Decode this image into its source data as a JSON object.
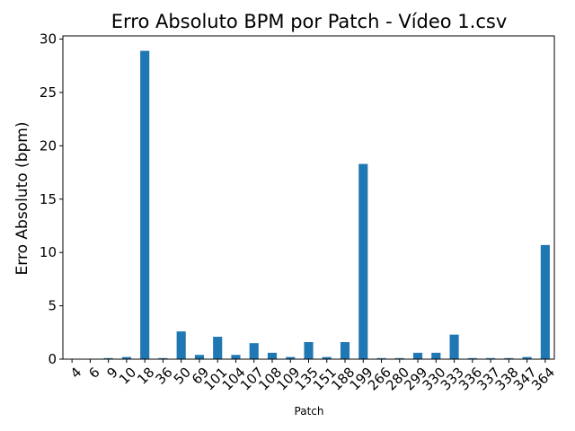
{
  "chart_data": {
    "type": "bar",
    "title": "Erro Absoluto BPM por Patch - Vídeo 1.csv",
    "xlabel": "Patch",
    "ylabel": "Erro Absoluto (bpm)",
    "ylim": [
      0,
      30.3
    ],
    "yticks": [
      0,
      5,
      10,
      15,
      20,
      25,
      30
    ],
    "grid": false,
    "legend": "none",
    "bar_color": "#1f77b4",
    "categories": [
      "4",
      "6",
      "9",
      "10",
      "18",
      "36",
      "50",
      "69",
      "101",
      "104",
      "107",
      "108",
      "109",
      "135",
      "151",
      "188",
      "199",
      "266",
      "280",
      "299",
      "330",
      "333",
      "336",
      "337",
      "338",
      "347",
      "364"
    ],
    "values": [
      0.02,
      0.02,
      0.1,
      0.2,
      28.9,
      0.1,
      2.6,
      0.4,
      2.1,
      0.4,
      1.5,
      0.6,
      0.2,
      1.6,
      0.2,
      1.6,
      18.3,
      0.1,
      0.1,
      0.6,
      0.6,
      2.3,
      0.1,
      0.1,
      0.1,
      0.2,
      10.7
    ]
  }
}
